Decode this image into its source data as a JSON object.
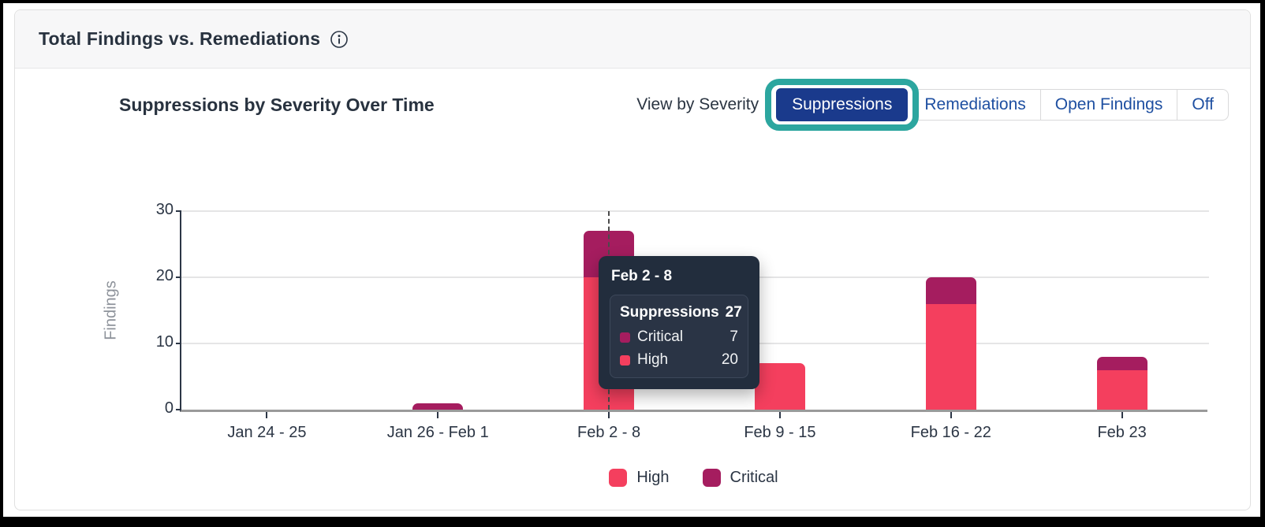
{
  "header": {
    "title": "Total Findings vs. Remediations",
    "info_icon": "info-circle-icon"
  },
  "chart_header": {
    "title": "Suppressions by Severity Over Time",
    "view_by_label": "View by Severity",
    "buttons": [
      {
        "label": "Suppressions",
        "selected": true,
        "annotated": true
      },
      {
        "label": "Remediations",
        "selected": false
      },
      {
        "label": "Open Findings",
        "selected": false
      },
      {
        "label": "Off",
        "selected": false
      }
    ]
  },
  "chart_data": {
    "type": "bar",
    "stacked": true,
    "title": "Suppressions by Severity Over Time",
    "categories": [
      "Jan 24 - 25",
      "Jan 26 - Feb 1",
      "Feb 2 - 8",
      "Feb 9 - 15",
      "Feb 16 - 22",
      "Feb 23"
    ],
    "series": [
      {
        "name": "High",
        "color": "#f43f5e",
        "values": [
          0,
          0,
          20,
          7,
          16,
          6
        ]
      },
      {
        "name": "Critical",
        "color": "#a51d5f",
        "values": [
          0,
          1,
          7,
          0,
          4,
          2
        ]
      }
    ],
    "totals": [
      0,
      1,
      27,
      7,
      20,
      8
    ],
    "xlabel": "",
    "ylabel": "Findings",
    "ylim": [
      0,
      30
    ],
    "yticks": [
      0,
      10,
      20,
      30
    ],
    "grid": true,
    "legend_position": "bottom",
    "highlighted_category": "Feb 2 - 8",
    "highlighted_index": 2
  },
  "tooltip": {
    "title": "Feb 2 - 8",
    "series_label": "Suppressions",
    "total": "27",
    "rows": [
      {
        "label": "Critical",
        "value": "7",
        "color": "#a51d5f"
      },
      {
        "label": "High",
        "value": "20",
        "color": "#f43f5e"
      }
    ]
  },
  "colors": {
    "annotation_ring": "#2ca69f",
    "selected_button_bg": "#1a3a8c",
    "button_text": "#1e4fa1",
    "high": "#f43f5e",
    "critical": "#a51d5f",
    "tooltip_bg": "#222d3d"
  }
}
